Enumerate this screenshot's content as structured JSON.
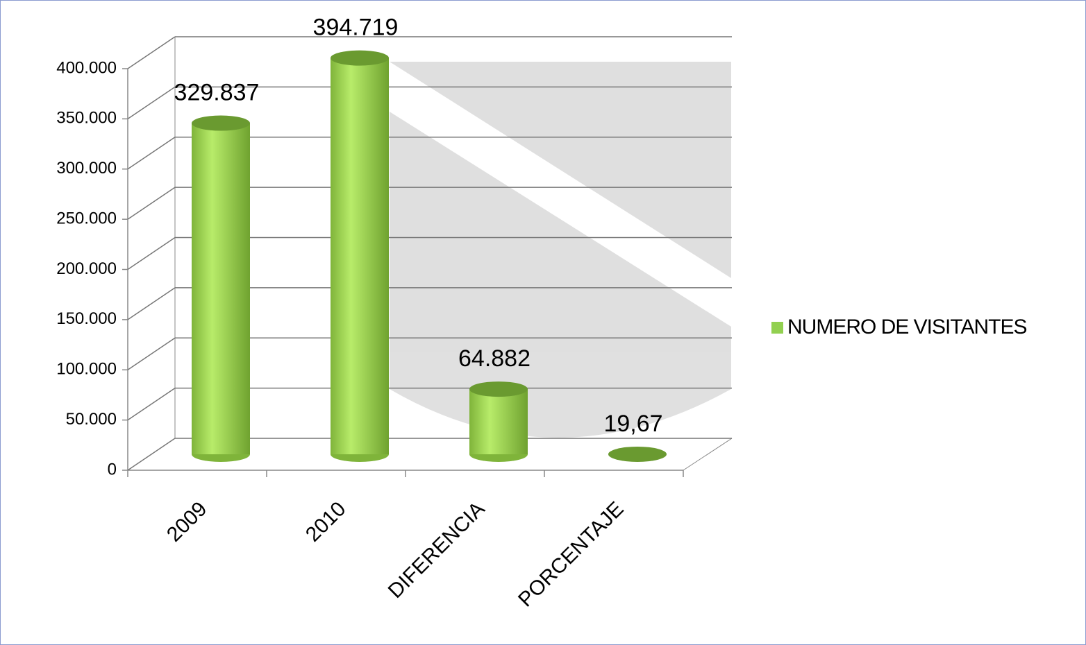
{
  "chart_data": {
    "type": "bar3d",
    "categories": [
      "2009",
      "2010",
      "DIFERENCIA",
      "PORCENTAJE"
    ],
    "series": [
      {
        "name": "NUMERO DE VISITANTES",
        "color": "#92d050",
        "values": [
          329837,
          394719,
          64882,
          19.67
        ],
        "value_labels": [
          "329.837",
          "394.719",
          "64.882",
          "19,67"
        ]
      }
    ],
    "ylim": [
      0,
      400000
    ],
    "yticks": [
      0,
      {
        "value": 50000,
        "label": "50.000"
      },
      {
        "value": 100000,
        "label": "100.000"
      },
      {
        "value": 150000,
        "label": "150.000"
      },
      {
        "value": 200000,
        "label": "200.000"
      },
      {
        "value": 250000,
        "label": "250.000"
      },
      {
        "value": 300000,
        "label": "300.000"
      },
      {
        "value": 350000,
        "label": "350.000"
      },
      {
        "value": 400000,
        "label": "400.000"
      }
    ],
    "grid": true,
    "legend": "right"
  }
}
